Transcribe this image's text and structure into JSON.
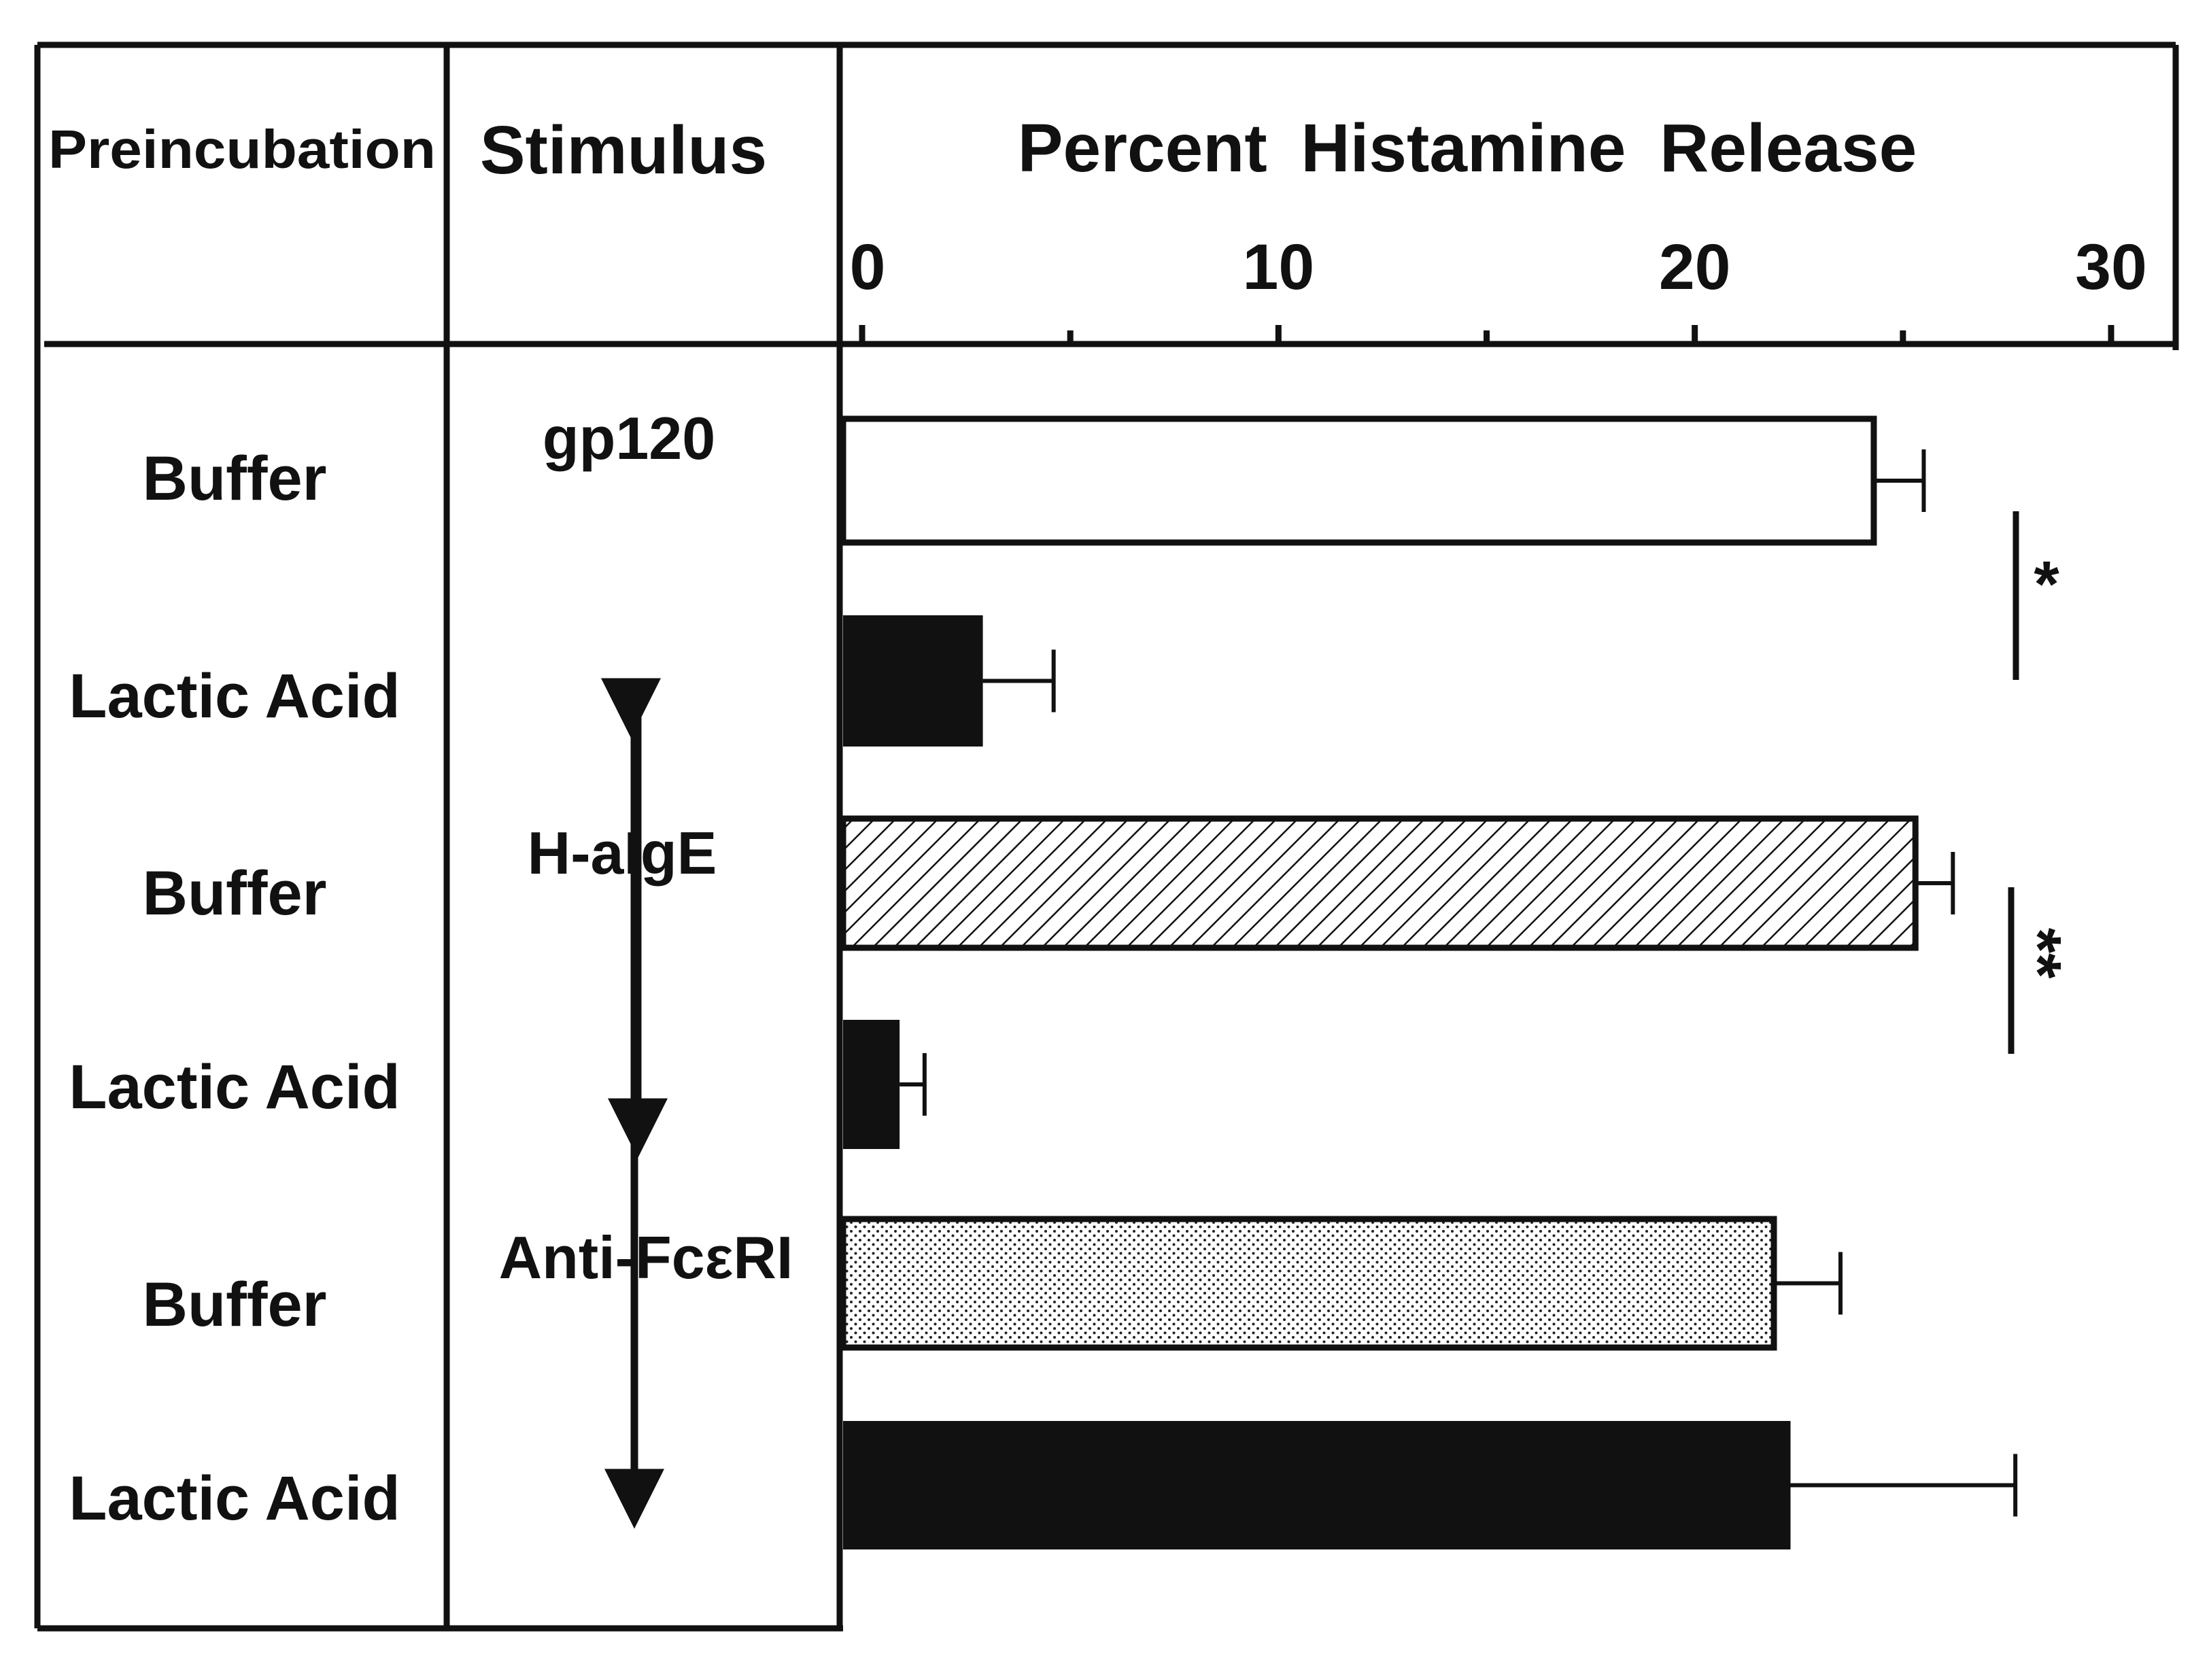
{
  "chart_data": {
    "type": "bar",
    "orientation": "horizontal",
    "title": "Percent Histamine Release",
    "columns": {
      "preincubation": "Preincubation",
      "stimulus": "Stimulus"
    },
    "xlim": [
      0,
      30
    ],
    "major_ticks": [
      0,
      10,
      20,
      30
    ],
    "minor_ticks": [
      5,
      15,
      25
    ],
    "stimuli": [
      "gp120",
      "H-aIgE",
      "Anti-FcεRI"
    ],
    "rows": [
      {
        "preincubation": "Buffer",
        "stimulus_index": 0,
        "value": 24.3,
        "error": 1.2,
        "fill": "white"
      },
      {
        "preincubation": "Lactic Acid",
        "stimulus_index": 0,
        "value": 2.9,
        "error": 1.7,
        "fill": "black"
      },
      {
        "preincubation": "Buffer",
        "stimulus_index": 1,
        "value": 25.3,
        "error": 0.9,
        "fill": "hatched"
      },
      {
        "preincubation": "Lactic Acid",
        "stimulus_index": 1,
        "value": 0.9,
        "error": 0.6,
        "fill": "black"
      },
      {
        "preincubation": "Buffer",
        "stimulus_index": 2,
        "value": 21.9,
        "error": 1.6,
        "fill": "dotted"
      },
      {
        "preincubation": "Lactic Acid",
        "stimulus_index": 2,
        "value": 22.3,
        "error": 5.4,
        "fill": "black"
      }
    ],
    "significance": [
      {
        "label": "*",
        "rows": [
          0,
          1
        ]
      },
      {
        "label": "**",
        "rows": [
          2,
          3
        ]
      }
    ],
    "grid": false,
    "legend": "none"
  }
}
